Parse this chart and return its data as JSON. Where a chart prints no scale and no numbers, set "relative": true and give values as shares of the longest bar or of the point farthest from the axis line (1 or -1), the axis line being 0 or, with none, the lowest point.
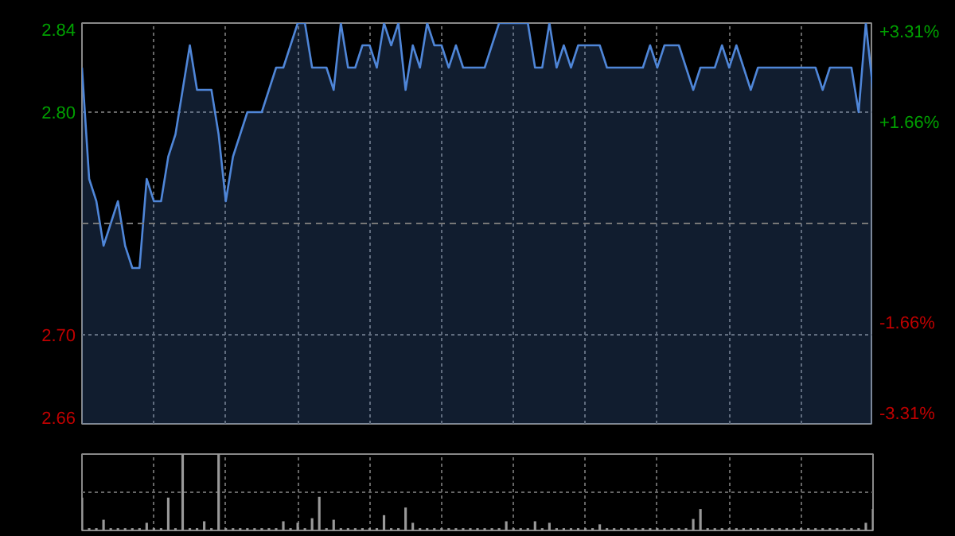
{
  "chart_data": [
    {
      "type": "area",
      "categories": [
        null,
        null,
        null,
        null,
        null,
        null,
        null,
        null,
        null,
        null,
        null,
        null,
        null,
        null,
        null,
        null,
        null,
        null,
        null,
        null,
        null,
        null,
        null,
        null,
        null,
        null,
        null,
        null,
        null,
        null,
        null,
        null,
        null,
        null,
        null,
        null,
        null,
        null,
        null,
        null,
        null,
        null,
        null,
        null,
        null,
        null,
        null,
        null,
        null,
        null,
        null,
        null,
        null,
        null,
        null,
        null,
        null,
        null,
        null,
        null,
        null,
        null,
        null,
        null,
        null,
        null,
        null,
        null,
        null,
        null,
        null,
        null,
        null,
        null,
        null,
        null,
        null,
        null,
        null,
        null,
        null,
        null,
        null,
        null,
        null,
        null,
        null,
        null,
        null,
        null,
        null,
        null,
        null,
        null,
        null,
        null,
        null,
        null,
        null,
        null,
        null,
        null,
        null,
        null,
        null,
        null,
        null,
        null,
        null,
        null,
        null
      ],
      "series": [
        {
          "color": "#4f86d8",
          "values": [
            2.82,
            2.77,
            2.76,
            2.74,
            2.75,
            2.76,
            2.74,
            2.73,
            2.73,
            2.77,
            2.76,
            2.76,
            2.78,
            2.79,
            2.81,
            2.83,
            2.81,
            2.81,
            2.81,
            2.79,
            2.76,
            2.78,
            2.79,
            2.8,
            2.8,
            2.8,
            2.81,
            2.82,
            2.82,
            2.83,
            2.84,
            2.84,
            2.82,
            2.82,
            2.82,
            2.81,
            2.84,
            2.82,
            2.82,
            2.83,
            2.83,
            2.82,
            2.84,
            2.83,
            2.84,
            2.81,
            2.83,
            2.82,
            2.84,
            2.83,
            2.83,
            2.82,
            2.83,
            2.82,
            2.82,
            2.82,
            2.82,
            2.83,
            2.84,
            2.84,
            2.84,
            2.84,
            2.84,
            2.82,
            2.82,
            2.84,
            2.82,
            2.83,
            2.82,
            2.83,
            2.83,
            2.83,
            2.83,
            2.82,
            2.82,
            2.82,
            2.82,
            2.82,
            2.82,
            2.83,
            2.82,
            2.83,
            2.83,
            2.83,
            2.82,
            2.81,
            2.82,
            2.82,
            2.82,
            2.83,
            2.82,
            2.83,
            2.82,
            2.81,
            2.82,
            2.82,
            2.82,
            2.82,
            2.82,
            2.82,
            2.82,
            2.82,
            2.82,
            2.81,
            2.82,
            2.82,
            2.82,
            2.82,
            2.8,
            2.84,
            2.81
          ]
        }
      ],
      "ylim": [
        2.66,
        2.84
      ],
      "yticks": [
        {
          "value": 2.66,
          "label": "2.66"
        },
        {
          "value": 2.7,
          "label": "2.70"
        },
        {
          "value": 2.8,
          "label": "2.80"
        },
        {
          "value": 2.84,
          "label": "2.84"
        }
      ],
      "y2lim": [
        -3.31,
        3.31
      ],
      "y2ticks": [
        {
          "value": -3.31,
          "label": "-3.31%"
        },
        {
          "value": -1.66,
          "label": "-1.66%"
        },
        {
          "value": 1.66,
          "label": "+1.66%"
        },
        {
          "value": 3.31,
          "label": "+3.31%"
        }
      ],
      "ref_lines": [
        {
          "axis": "y",
          "value": 2.75,
          "label": null,
          "color": "#777777",
          "line_style": "dashed"
        }
      ],
      "grid": true
    },
    {
      "type": "bar",
      "relative": true,
      "color": "#999999",
      "grid": true,
      "categories": [
        null,
        null,
        null,
        null,
        null,
        null,
        null,
        null,
        null,
        null,
        null,
        null,
        null,
        null,
        null,
        null,
        null,
        null,
        null,
        null,
        null,
        null,
        null,
        null,
        null,
        null,
        null,
        null,
        null,
        null,
        null,
        null,
        null,
        null,
        null,
        null,
        null,
        null,
        null,
        null,
        null,
        null,
        null,
        null,
        null,
        null,
        null,
        null,
        null,
        null,
        null,
        null,
        null,
        null,
        null,
        null,
        null,
        null,
        null,
        null,
        null,
        null,
        null,
        null,
        null,
        null,
        null,
        null,
        null,
        null,
        null,
        null,
        null,
        null,
        null,
        null,
        null,
        null,
        null,
        null,
        null,
        null,
        null,
        null,
        null,
        null,
        null,
        null,
        null,
        null,
        null,
        null,
        null,
        null,
        null,
        null,
        null,
        null,
        null,
        null,
        null,
        null,
        null,
        null,
        null,
        null,
        null,
        null,
        null,
        null,
        null
      ],
      "values": [
        0.43,
        0.03,
        0.03,
        0.14,
        0.03,
        0.03,
        0.03,
        0.03,
        0.03,
        0.1,
        0.03,
        0.03,
        0.43,
        0.03,
        1,
        0.03,
        0.03,
        0.12,
        0.03,
        1,
        0.03,
        0.03,
        0.03,
        0.03,
        0.03,
        0.03,
        0.03,
        0.03,
        0.12,
        0.03,
        0.1,
        0.03,
        0.16,
        0.44,
        0.03,
        0.14,
        0.03,
        0.03,
        0.03,
        0.03,
        0.03,
        0.03,
        0.2,
        0.03,
        0.03,
        0.3,
        0.1,
        0.03,
        0.03,
        0.03,
        0.03,
        0.03,
        0.03,
        0.03,
        0.03,
        0.03,
        0.03,
        0.03,
        0.03,
        0.12,
        0.03,
        0.03,
        0.03,
        0.12,
        0.03,
        0.1,
        0.03,
        0.03,
        0.03,
        0.03,
        0.03,
        0.03,
        0.08,
        0.03,
        0.03,
        0.03,
        0.03,
        0.03,
        0.03,
        0.03,
        0.03,
        0.03,
        0.03,
        0.03,
        0.03,
        0.15,
        0.28,
        0.03,
        0.03,
        0.03,
        0.03,
        0.03,
        0.03,
        0.03,
        0.03,
        0.03,
        0.03,
        0.03,
        0.03,
        0.03,
        0.03,
        0.03,
        0.03,
        0.03,
        0.03,
        0.03,
        0.03,
        0.03,
        0.03,
        0.1,
        0.28
      ]
    }
  ]
}
